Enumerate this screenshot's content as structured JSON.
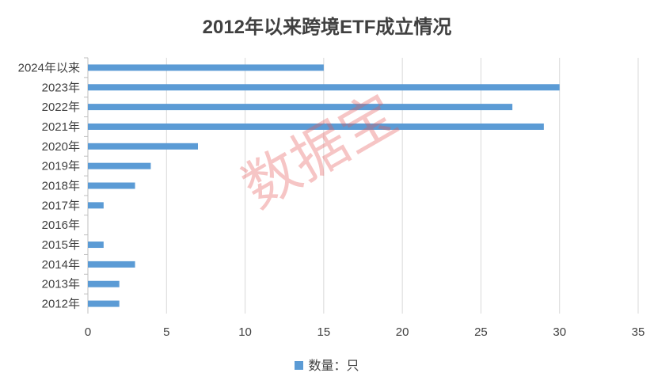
{
  "chart_data": {
    "type": "bar",
    "orientation": "horizontal",
    "title": "2012年以来跨境ETF成立情况",
    "categories": [
      "2024年以来",
      "2023年",
      "2022年",
      "2021年",
      "2020年",
      "2019年",
      "2018年",
      "2017年",
      "2016年",
      "2015年",
      "2014年",
      "2013年",
      "2012年"
    ],
    "series": [
      {
        "name": "数量：只",
        "values": [
          15,
          30,
          27,
          29,
          7,
          4,
          3,
          1,
          0,
          1,
          3,
          2,
          2
        ]
      }
    ],
    "xlim": [
      0,
      35
    ],
    "xticks": [
      0,
      5,
      10,
      15,
      20,
      25,
      30,
      35
    ],
    "grid": true,
    "legend": "bottom",
    "colors": {
      "bar": "#5b9bd5",
      "grid": "#d9d9d9",
      "axis": "#bfbfbf"
    }
  },
  "watermark": "数据宝"
}
